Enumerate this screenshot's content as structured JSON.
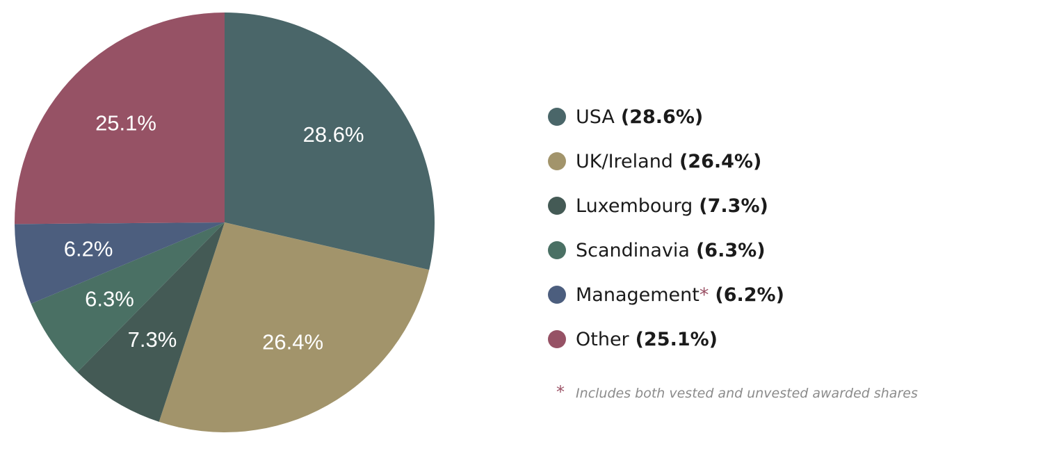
{
  "chart_data": {
    "type": "pie",
    "start_angle_deg": 0,
    "direction": "clockwise",
    "slices": [
      {
        "name": "USA",
        "value": 28.6,
        "label": "28.6%",
        "legend_pct": "(28.6%)",
        "color": "#4a6669",
        "marked": false
      },
      {
        "name": "UK/Ireland",
        "value": 26.4,
        "label": "26.4%",
        "legend_pct": "(26.4%)",
        "color": "#a2946b",
        "marked": false
      },
      {
        "name": "Luxembourg",
        "value": 7.3,
        "label": "7.3%",
        "legend_pct": "(7.3%)",
        "color": "#445a55",
        "marked": false
      },
      {
        "name": "Scandinavia",
        "value": 6.3,
        "label": "6.3%",
        "legend_pct": "(6.3%)",
        "color": "#4a7064",
        "marked": false
      },
      {
        "name": "Management",
        "value": 6.2,
        "label": "6.2%",
        "legend_pct": "(6.2%)",
        "color": "#4c5e7e",
        "marked": true
      },
      {
        "name": "Other",
        "value": 25.1,
        "label": "25.1%",
        "legend_pct": "(25.1%)",
        "color": "#965265",
        "marked": false
      }
    ],
    "legend_position": "right"
  },
  "footnote": {
    "marker": "*",
    "text": "Includes both vested and unvested awarded shares"
  }
}
